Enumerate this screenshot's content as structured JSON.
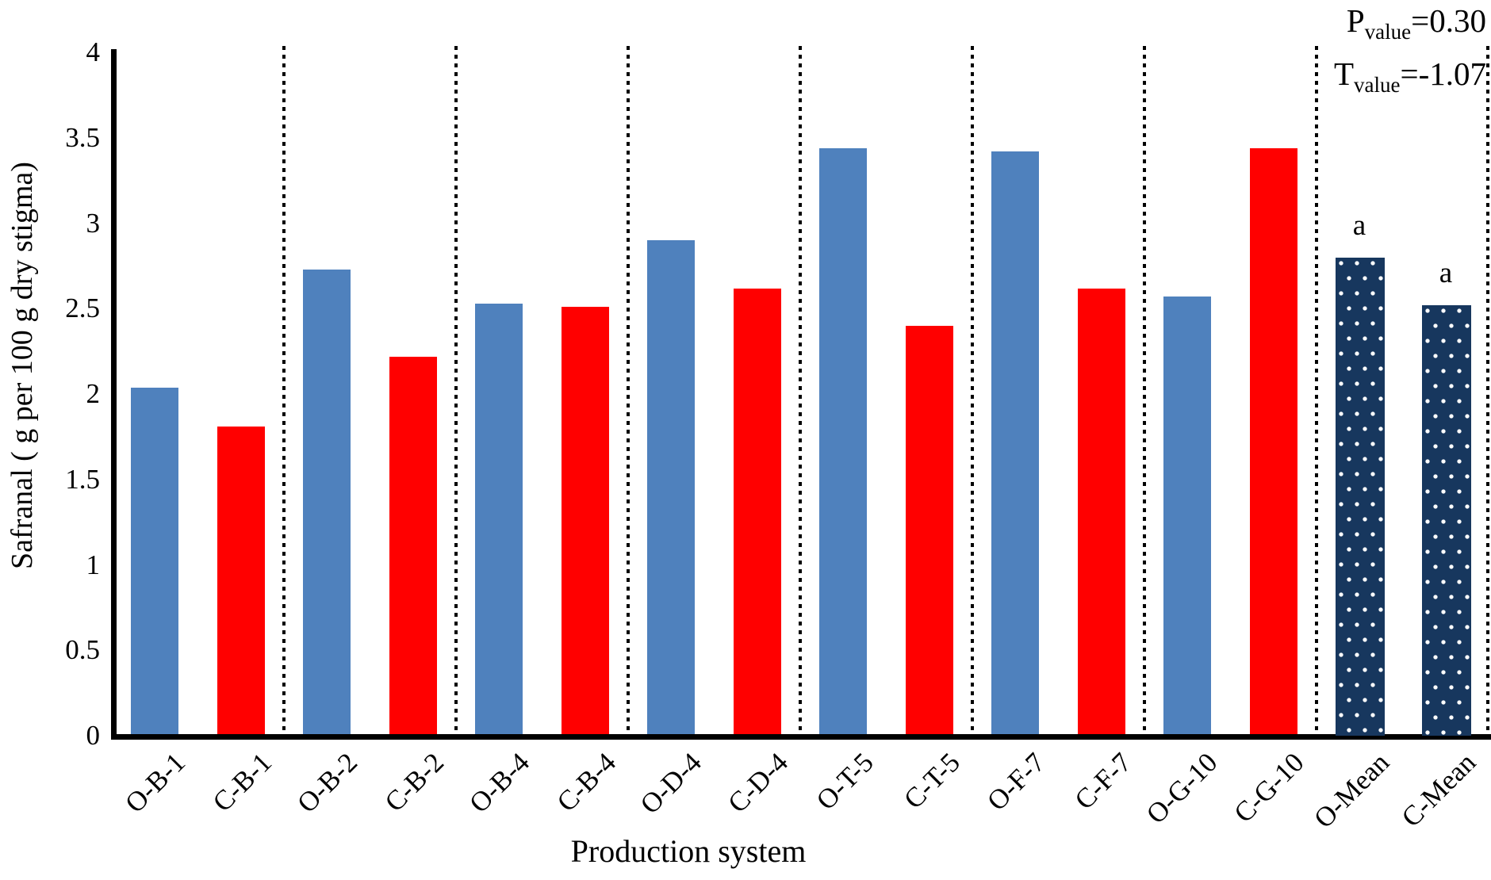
{
  "figure": {
    "stats": [
      {
        "base": "P",
        "sub": "value",
        "rest": "=0.30"
      },
      {
        "base": "T",
        "sub": "value",
        "rest": "=-1.07"
      }
    ]
  },
  "chart_data": {
    "type": "bar",
    "title": "",
    "xlabel": "Production system",
    "ylabel": "Safranal ( g per 100 g dry stigma)",
    "ylim": [
      0,
      4
    ],
    "ytick_interval": 0.5,
    "yticks": [
      "0",
      "0.5",
      "1",
      "1.5",
      "2",
      "2.5",
      "3",
      "3.5",
      "4"
    ],
    "categories": [
      "O-B-1",
      "C-B-1",
      "O-B-2",
      "C-B-2",
      "O-B-4",
      "C-B-4",
      "O-D-4",
      "C-D-4",
      "O-T-5",
      "C-T-5",
      "O-F-7",
      "C-F-7",
      "O-G-10",
      "C-G-10",
      "O-Mean",
      "C-Mean"
    ],
    "values": [
      2.03,
      1.8,
      2.72,
      2.21,
      2.52,
      2.5,
      2.89,
      2.61,
      3.43,
      2.39,
      3.41,
      2.61,
      2.56,
      3.43,
      2.79,
      2.51
    ],
    "bar_styles": [
      "organic",
      "conventional",
      "organic",
      "conventional",
      "organic",
      "conventional",
      "organic",
      "conventional",
      "organic",
      "conventional",
      "organic",
      "conventional",
      "organic",
      "conventional",
      "mean",
      "mean"
    ],
    "bar_annotations": [
      {
        "category": "O-Mean",
        "text": "a"
      },
      {
        "category": "C-Mean",
        "text": "a"
      }
    ],
    "separators_between_pairs": true,
    "grid": "off",
    "legend": "none",
    "colors": {
      "organic": "#4F81BD",
      "conventional": "#FF0000",
      "mean_fill": "#17375E",
      "mean_dots": "#FFFFFF",
      "axis": "#000000",
      "separator": "#000000"
    }
  }
}
